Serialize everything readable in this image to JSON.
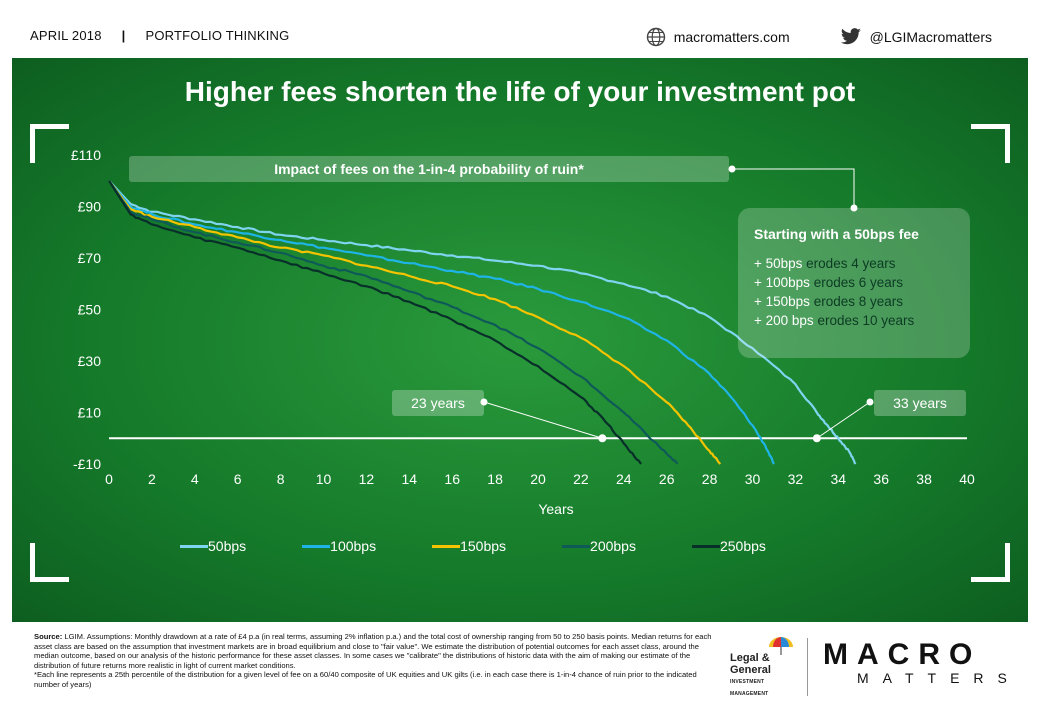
{
  "header": {
    "date": "APRIL 2018",
    "separator": "|",
    "section": "PORTFOLIO THINKING",
    "website": "macromatters.com",
    "twitter": "@LGIMacromatters"
  },
  "icons": {
    "website": "globe-icon",
    "twitter": "twitter-bird-icon"
  },
  "colors": {
    "panel_bg": "#1a7f2e",
    "s50": "#7fd4f0",
    "s100": "#1fb4e8",
    "s150": "#f5c400",
    "s200": "#0f5a58",
    "s250": "#082f2a"
  },
  "title": "Higher fees shorten the life of your investment pot",
  "impact_label": "Impact of fees on the 1-in-4 probability of ruin*",
  "callout": {
    "heading": "Starting with a 50bps fee",
    "items": [
      {
        "fee": "+ 50bps",
        "text": " erodes 4 years"
      },
      {
        "fee": "+ 100bps",
        "text": " erodes 6 years"
      },
      {
        "fee": "+ 150bps",
        "text": " erodes 8 years"
      },
      {
        "fee": "+ 200 bps",
        "text": " erodes 10 years"
      }
    ]
  },
  "annotations": {
    "left": "23 years",
    "right": "33 years"
  },
  "chart_data": {
    "type": "line",
    "xlabel": "Years",
    "ylabel": "",
    "xlim": [
      0,
      40
    ],
    "ylim": [
      -10,
      110
    ],
    "x_ticks": [
      0,
      2,
      4,
      6,
      8,
      10,
      12,
      14,
      16,
      18,
      20,
      22,
      24,
      26,
      28,
      30,
      32,
      34,
      36,
      38,
      40
    ],
    "y_ticks": [
      {
        "value": 110,
        "label": "£110"
      },
      {
        "value": 90,
        "label": "£90"
      },
      {
        "value": 70,
        "label": "£70"
      },
      {
        "value": 50,
        "label": "£50"
      },
      {
        "value": 30,
        "label": "£30"
      },
      {
        "value": 10,
        "label": "£10"
      },
      {
        "value": -10,
        "label": "-£10"
      }
    ],
    "legend_position": "bottom",
    "series": [
      {
        "name": "50bps",
        "color": "#7fd4f0",
        "points": [
          [
            0,
            100
          ],
          [
            1,
            91
          ],
          [
            2,
            88
          ],
          [
            4,
            85
          ],
          [
            6,
            82
          ],
          [
            8,
            79
          ],
          [
            10,
            77
          ],
          [
            12,
            75
          ],
          [
            14,
            73
          ],
          [
            16,
            71
          ],
          [
            18,
            69
          ],
          [
            20,
            67
          ],
          [
            22,
            64
          ],
          [
            24,
            60
          ],
          [
            26,
            55
          ],
          [
            28,
            47
          ],
          [
            30,
            35
          ],
          [
            32,
            21
          ],
          [
            33,
            10
          ],
          [
            33.5,
            5
          ],
          [
            34,
            0
          ],
          [
            34.5,
            -5
          ],
          [
            34.8,
            -10
          ]
        ]
      },
      {
        "name": "100bps",
        "color": "#1fb4e8",
        "points": [
          [
            0,
            100
          ],
          [
            1,
            90
          ],
          [
            2,
            87
          ],
          [
            4,
            83
          ],
          [
            6,
            80
          ],
          [
            8,
            77
          ],
          [
            10,
            74
          ],
          [
            12,
            71
          ],
          [
            14,
            68
          ],
          [
            16,
            65
          ],
          [
            18,
            62
          ],
          [
            20,
            58
          ],
          [
            22,
            53
          ],
          [
            24,
            47
          ],
          [
            26,
            38
          ],
          [
            28,
            25
          ],
          [
            29,
            16
          ],
          [
            30,
            5
          ],
          [
            30.6,
            -3
          ],
          [
            31,
            -10
          ]
        ]
      },
      {
        "name": "150bps",
        "color": "#f5c400",
        "points": [
          [
            0,
            100
          ],
          [
            1,
            89
          ],
          [
            2,
            86
          ],
          [
            4,
            82
          ],
          [
            6,
            78
          ],
          [
            8,
            74
          ],
          [
            10,
            71
          ],
          [
            12,
            67
          ],
          [
            14,
            63
          ],
          [
            16,
            59
          ],
          [
            18,
            54
          ],
          [
            20,
            47
          ],
          [
            22,
            39
          ],
          [
            24,
            28
          ],
          [
            26,
            14
          ],
          [
            27,
            5
          ],
          [
            28,
            -5
          ],
          [
            28.5,
            -10
          ]
        ]
      },
      {
        "name": "200bps",
        "color": "#0f5a58",
        "points": [
          [
            0,
            100
          ],
          [
            1,
            88
          ],
          [
            2,
            85
          ],
          [
            4,
            80
          ],
          [
            6,
            76
          ],
          [
            8,
            72
          ],
          [
            10,
            67
          ],
          [
            12,
            63
          ],
          [
            14,
            57
          ],
          [
            16,
            51
          ],
          [
            18,
            44
          ],
          [
            20,
            35
          ],
          [
            22,
            24
          ],
          [
            24,
            10
          ],
          [
            25,
            2
          ],
          [
            26,
            -6
          ],
          [
            26.5,
            -10
          ]
        ]
      },
      {
        "name": "250bps",
        "color": "#082f2a",
        "points": [
          [
            0,
            100
          ],
          [
            1,
            87
          ],
          [
            2,
            83
          ],
          [
            4,
            78
          ],
          [
            6,
            74
          ],
          [
            8,
            69
          ],
          [
            10,
            64
          ],
          [
            12,
            59
          ],
          [
            14,
            53
          ],
          [
            16,
            46
          ],
          [
            18,
            38
          ],
          [
            20,
            28
          ],
          [
            22,
            16
          ],
          [
            23,
            8
          ],
          [
            24,
            -2
          ],
          [
            24.8,
            -10
          ]
        ]
      }
    ]
  },
  "footer": {
    "source_label": "Source:",
    "source_text": " LGIM. Assumptions: Monthly drawdown at a rate of £4 p.a (in real terms, assuming 2% inflation p.a.) and the total cost of ownership ranging from 50 to 250 basis points. Median returns for each asset class are based on the assumption that investment markets are in broad equilibrium and close to \"fair value\". We estimate the distribution of potential outcomes for each asset class, around the median outcome, based on our analysis of the historic performance for these asset classes. In some cases we \"calibrate\" the distributions of historic data with the aim of making our estimate of the distribution of future returns more realistic in light of current market conditions.",
    "footnote": "*Each line represents a 25th percentile of the distribution for a given level of fee on a 60/40 composite of UK equities and UK gilts (i.e. in each case there is 1-in-4 chance of ruin prior to the indicated number of years)",
    "lg_logo_line1": "Legal &",
    "lg_logo_line2": "General",
    "lg_logo_line3": "INVESTMENT MANAGEMENT",
    "mm_logo_top": "MACRO",
    "mm_logo_bottom": "MATTERS"
  }
}
